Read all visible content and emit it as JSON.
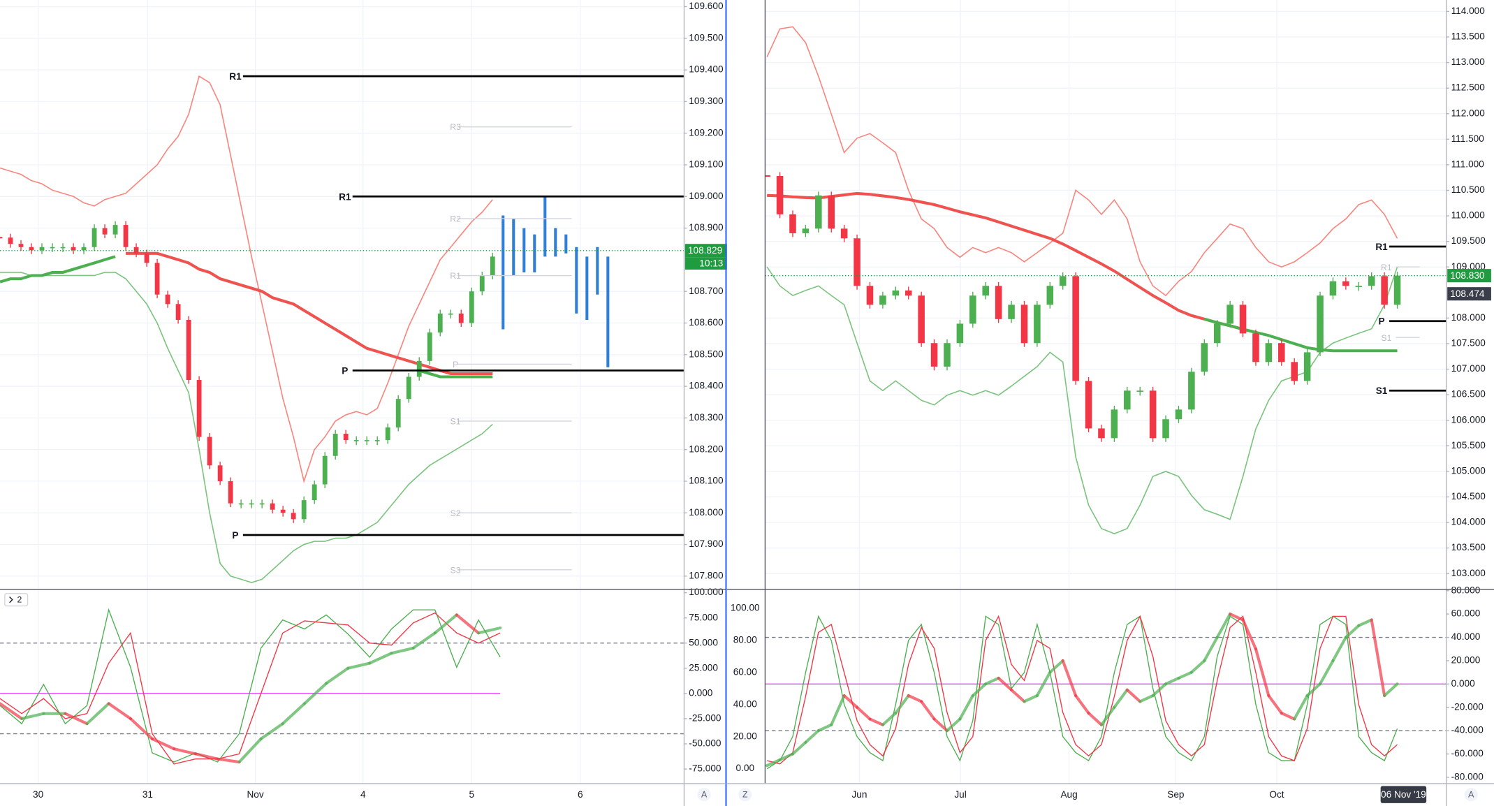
{
  "colors": {
    "up": "#4caf50",
    "down": "#f23645",
    "band_upper": "#f7877f",
    "band_lower": "#7cc47f",
    "ma_red": "#ef5350",
    "ma_green": "#4caf50",
    "projection": "#2f7fd6",
    "pivot": "#000000",
    "faint": "#d1d4dc",
    "badge": "#1e9c3f",
    "badge_dark": "#3a3e4a",
    "level": "#787b86",
    "zero": "#e040fb",
    "osc_fast": "#4caf50",
    "osc_slow": "#f23645",
    "grid": "#f0f3fa"
  },
  "left": {
    "price": {
      "ylim": [
        107.763,
        109.621
      ],
      "yticks": [
        {
          "value": 109.6,
          "label": "109.600"
        },
        {
          "value": 109.5,
          "label": "109.500"
        },
        {
          "value": 109.4,
          "label": "109.400"
        },
        {
          "value": 109.3,
          "label": "109.300"
        },
        {
          "value": 109.2,
          "label": "109.200"
        },
        {
          "value": 109.1,
          "label": "109.100"
        },
        {
          "value": 109.0,
          "label": "109.000"
        },
        {
          "value": 108.9,
          "label": "108.900"
        },
        {
          "value": 108.7,
          "label": "108.700"
        },
        {
          "value": 108.6,
          "label": "108.600"
        },
        {
          "value": 108.5,
          "label": "108.500"
        },
        {
          "value": 108.4,
          "label": "108.400"
        },
        {
          "value": 108.3,
          "label": "108.300"
        },
        {
          "value": 108.2,
          "label": "108.200"
        },
        {
          "value": 108.1,
          "label": "108.100"
        },
        {
          "value": 108.0,
          "label": "108.000"
        },
        {
          "value": 107.9,
          "label": "107.900"
        },
        {
          "value": 107.8,
          "label": "107.800"
        }
      ],
      "close": [
        108.87,
        108.85,
        108.84,
        108.83,
        108.84,
        108.84,
        108.84,
        108.83,
        108.84,
        108.9,
        108.88,
        108.91,
        108.84,
        108.82,
        108.79,
        108.69,
        108.66,
        108.61,
        108.42,
        108.24,
        108.15,
        108.1,
        108.03,
        108.03,
        108.03,
        108.03,
        108.01,
        108.0,
        107.98,
        108.04,
        108.09,
        108.18,
        108.25,
        108.23,
        108.23,
        108.23,
        108.23,
        108.27,
        108.36,
        108.43,
        108.48,
        108.57,
        108.63,
        108.63,
        108.6,
        108.7,
        108.75,
        108.81
      ],
      "ma_red": [
        null,
        null,
        null,
        null,
        null,
        null,
        null,
        null,
        null,
        null,
        null,
        null,
        108.82,
        108.82,
        108.82,
        108.82,
        108.81,
        108.8,
        108.79,
        108.77,
        108.76,
        108.74,
        108.73,
        108.72,
        108.71,
        108.7,
        108.68,
        108.67,
        108.66,
        108.64,
        108.62,
        108.6,
        108.58,
        108.56,
        108.54,
        108.52,
        108.51,
        108.5,
        108.49,
        108.48,
        108.47,
        108.46,
        108.45,
        108.44,
        108.44,
        108.44,
        108.44,
        108.44
      ],
      "ma_green": [
        108.73,
        108.74,
        108.74,
        108.75,
        108.75,
        108.76,
        108.76,
        108.77,
        108.78,
        108.79,
        108.8,
        108.81,
        null,
        null,
        null,
        null,
        null,
        null,
        null,
        null,
        null,
        null,
        null,
        null,
        null,
        null,
        null,
        null,
        null,
        null,
        null,
        null,
        null,
        null,
        null,
        null,
        null,
        null,
        null,
        null,
        108.45,
        108.44,
        108.43,
        108.43,
        108.43,
        108.43,
        108.43,
        108.43
      ],
      "band_upper": [
        109.09,
        109.08,
        109.07,
        109.05,
        109.04,
        109.02,
        109.01,
        109.0,
        108.98,
        108.97,
        108.99,
        109.0,
        109.01,
        109.04,
        109.07,
        109.1,
        109.15,
        109.19,
        109.26,
        109.38,
        109.36,
        109.29,
        109.13,
        108.97,
        108.81,
        108.66,
        108.51,
        108.36,
        108.24,
        108.1,
        108.2,
        108.24,
        108.29,
        108.31,
        108.32,
        108.31,
        108.33,
        108.41,
        108.5,
        108.59,
        108.66,
        108.73,
        108.8,
        108.84,
        108.88,
        108.92,
        108.95,
        108.99
      ],
      "band_lower": [
        108.76,
        108.76,
        108.76,
        108.75,
        108.75,
        108.75,
        108.75,
        108.75,
        108.75,
        108.75,
        108.76,
        108.76,
        108.74,
        108.7,
        108.66,
        108.6,
        108.52,
        108.45,
        108.38,
        108.2,
        108.0,
        107.84,
        107.8,
        107.79,
        107.78,
        107.79,
        107.82,
        107.85,
        107.88,
        107.9,
        107.91,
        107.91,
        107.92,
        107.92,
        107.93,
        107.95,
        107.97,
        108.01,
        108.05,
        108.09,
        108.12,
        108.15,
        108.17,
        108.19,
        108.21,
        108.23,
        108.25,
        108.28
      ],
      "proj_high": [
        108.94,
        108.93,
        108.9,
        108.88,
        109.0,
        108.9,
        108.88,
        108.84,
        108.81,
        108.84,
        108.81
      ],
      "proj_low": [
        108.58,
        108.75,
        108.76,
        108.76,
        108.81,
        108.81,
        108.82,
        108.63,
        108.61,
        108.69,
        108.46
      ],
      "pivots": [
        {
          "label": "R1",
          "value": 109.38
        },
        {
          "label": "R1",
          "value": 109.0
        },
        {
          "label": "P",
          "value": 108.45
        },
        {
          "label": "P",
          "value": 107.93
        }
      ],
      "faint_pivots": [
        {
          "label": "R3",
          "value": 109.22
        },
        {
          "label": "R2",
          "value": 108.93
        },
        {
          "label": "R1",
          "value": 108.75
        },
        {
          "label": "P",
          "value": 108.47
        },
        {
          "label": "S1",
          "value": 108.29
        },
        {
          "label": "S2",
          "value": 108.0
        },
        {
          "label": "S3",
          "value": 107.82
        }
      ],
      "last_price": {
        "value": 108.829,
        "label": "108.829"
      },
      "countdown": "10:13"
    },
    "osc": {
      "ylim": [
        -89,
        102
      ],
      "yticks": [
        {
          "value": 100,
          "label": "100.000"
        },
        {
          "value": 75,
          "label": "75.000"
        },
        {
          "value": 50,
          "label": "50.000"
        },
        {
          "value": 25,
          "label": "25.000"
        },
        {
          "value": 0,
          "label": "0.000"
        },
        {
          "value": -25,
          "label": "-25.000"
        },
        {
          "value": -50,
          "label": "-50.000"
        },
        {
          "value": -75,
          "label": "-75.000"
        }
      ],
      "levels": [
        50,
        -40
      ],
      "zero": 0,
      "fast": [
        -12,
        -30,
        9,
        -30,
        -12,
        83,
        26,
        -59,
        -68,
        -59,
        -68,
        -40,
        45,
        73,
        64,
        78,
        59,
        36,
        64,
        83,
        83,
        26,
        73,
        36
      ],
      "slow": [
        -5,
        -20,
        -5,
        -25,
        -20,
        30,
        60,
        -40,
        -70,
        -65,
        -65,
        -60,
        0,
        60,
        72,
        70,
        68,
        50,
        48,
        70,
        80,
        60,
        50,
        60
      ],
      "thick": [
        -10,
        -25,
        -20,
        -20,
        -30,
        -10,
        -25,
        -45,
        -55,
        -60,
        -65,
        -68,
        -45,
        -30,
        -10,
        10,
        25,
        30,
        40,
        45,
        60,
        78,
        60,
        65
      ]
    },
    "time_labels": [
      "30",
      "31",
      "Nov",
      "4",
      "5",
      "6"
    ],
    "pane_toggle": "2",
    "scale_button": "A"
  },
  "right": {
    "price": {
      "ylim": [
        102.721,
        114.224
      ],
      "yticks": [
        {
          "value": 114.0,
          "label": "114.000"
        },
        {
          "value": 113.5,
          "label": "113.500"
        },
        {
          "value": 113.0,
          "label": "113.000"
        },
        {
          "value": 112.5,
          "label": "112.500"
        },
        {
          "value": 112.0,
          "label": "112.000"
        },
        {
          "value": 111.5,
          "label": "111.500"
        },
        {
          "value": 111.0,
          "label": "111.000"
        },
        {
          "value": 110.5,
          "label": "110.500"
        },
        {
          "value": 110.0,
          "label": "110.000"
        },
        {
          "value": 109.5,
          "label": "109.500"
        },
        {
          "value": 109.0,
          "label": "109.000"
        },
        {
          "value": 108.0,
          "label": "108.000"
        },
        {
          "value": 107.5,
          "label": "107.500"
        },
        {
          "value": 107.0,
          "label": "107.000"
        },
        {
          "value": 106.5,
          "label": "106.500"
        },
        {
          "value": 106.0,
          "label": "106.000"
        },
        {
          "value": 105.5,
          "label": "105.500"
        },
        {
          "value": 105.0,
          "label": "105.000"
        },
        {
          "value": 104.5,
          "label": "104.500"
        },
        {
          "value": 104.0,
          "label": "104.000"
        },
        {
          "value": 103.5,
          "label": "103.500"
        },
        {
          "value": 103.0,
          "label": "103.000"
        }
      ],
      "close": [
        110.78,
        110.03,
        109.66,
        109.75,
        110.4,
        109.75,
        109.56,
        108.63,
        108.26,
        108.44,
        108.54,
        108.44,
        107.51,
        107.05,
        107.51,
        107.89,
        108.44,
        108.63,
        107.98,
        108.26,
        107.51,
        108.26,
        108.63,
        108.82,
        106.77,
        105.84,
        105.65,
        106.21,
        106.58,
        106.58,
        105.65,
        106.02,
        106.21,
        106.95,
        107.51,
        107.89,
        108.26,
        107.7,
        107.14,
        107.51,
        107.14,
        106.77,
        107.33,
        108.44,
        108.72,
        108.63,
        108.63,
        108.82,
        108.26,
        108.83
      ],
      "ma_red": [
        110.4,
        110.39,
        110.37,
        110.36,
        110.35,
        110.38,
        110.41,
        110.44,
        110.42,
        110.39,
        110.36,
        110.32,
        110.27,
        110.22,
        110.15,
        110.08,
        110.02,
        109.96,
        109.88,
        109.8,
        109.72,
        109.64,
        109.56,
        109.45,
        109.32,
        109.19,
        109.06,
        108.92,
        108.76,
        108.6,
        108.44,
        108.3,
        108.15,
        108.05,
        107.98,
        107.91,
        107.85,
        107.78,
        107.72,
        null,
        null,
        null,
        null,
        null,
        null,
        null,
        null,
        null,
        null,
        null
      ],
      "ma_green": [
        null,
        null,
        null,
        null,
        null,
        null,
        null,
        null,
        null,
        null,
        null,
        null,
        null,
        null,
        null,
        null,
        null,
        null,
        null,
        null,
        null,
        null,
        null,
        null,
        null,
        null,
        null,
        null,
        null,
        null,
        null,
        null,
        null,
        null,
        107.98,
        107.91,
        107.85,
        107.78,
        107.72,
        107.66,
        107.58,
        107.5,
        107.42,
        107.38,
        107.36,
        107.36,
        107.36,
        107.36,
        107.36,
        107.36
      ],
      "band_upper": [
        113.11,
        113.66,
        113.7,
        113.39,
        112.73,
        111.99,
        111.24,
        111.52,
        111.61,
        111.43,
        111.24,
        110.5,
        109.94,
        109.75,
        109.38,
        109.19,
        109.38,
        109.28,
        109.38,
        109.28,
        109.1,
        109.28,
        109.47,
        109.66,
        110.5,
        110.31,
        110.03,
        110.31,
        109.94,
        109.1,
        108.63,
        108.44,
        108.72,
        108.91,
        109.28,
        109.56,
        109.84,
        109.75,
        109.38,
        109.1,
        109.0,
        109.1,
        109.28,
        109.47,
        109.75,
        109.94,
        110.22,
        110.31,
        110.03,
        109.56
      ],
      "band_lower": [
        109.0,
        108.63,
        108.44,
        108.54,
        108.63,
        108.44,
        108.26,
        107.51,
        106.77,
        106.58,
        106.77,
        106.58,
        106.39,
        106.3,
        106.49,
        106.58,
        106.49,
        106.58,
        106.49,
        106.67,
        106.86,
        107.05,
        107.33,
        107.14,
        105.28,
        104.34,
        103.88,
        103.78,
        103.88,
        104.34,
        104.9,
        105.0,
        104.9,
        104.53,
        104.25,
        104.16,
        104.06,
        104.9,
        105.83,
        106.39,
        106.77,
        106.86,
        106.95,
        107.33,
        107.51,
        107.61,
        107.7,
        107.79,
        108.26,
        109.0
      ],
      "pivots": [
        {
          "label": "R1",
          "value": 109.4
        },
        {
          "label": "P",
          "value": 107.94
        },
        {
          "label": "S1",
          "value": 106.58
        }
      ],
      "faint_pivots": [
        {
          "label": "R1",
          "value": 109.0
        },
        {
          "label": "S1",
          "value": 107.62
        }
      ],
      "last_price": {
        "value": 108.83,
        "label": "108.830"
      },
      "second_price": {
        "value": 108.474,
        "label": "108.474"
      }
    },
    "osc": {
      "ylim": [
        -9,
        111
      ],
      "yticks": [
        {
          "value": 100,
          "label": "100.00"
        },
        {
          "value": 80,
          "label": "80.00"
        },
        {
          "value": 60,
          "label": "60.00"
        },
        {
          "value": 40,
          "label": "40.00"
        },
        {
          "value": 20,
          "label": "20.00"
        },
        {
          "value": 0,
          "label": "0.00"
        }
      ],
      "y2lim": [
        -85,
        80
      ],
      "y2ticks": [
        {
          "value": 80,
          "label": "80.000"
        },
        {
          "value": 60,
          "label": "60.000"
        },
        {
          "value": 40,
          "label": "40.000"
        },
        {
          "value": 20,
          "label": "20.000"
        },
        {
          "value": 0,
          "label": "0.000"
        },
        {
          "value": -20,
          "label": "-20.000"
        },
        {
          "value": -40,
          "label": "-40.000"
        },
        {
          "value": -60,
          "label": "-60.000"
        },
        {
          "value": -80,
          "label": "-80.000"
        }
      ],
      "levels": [
        40,
        -40
      ],
      "zero": 0,
      "fast": [
        0,
        5,
        20,
        60,
        95,
        80,
        40,
        20,
        10,
        5,
        40,
        80,
        90,
        60,
        20,
        5,
        30,
        95,
        90,
        50,
        60,
        90,
        60,
        20,
        10,
        5,
        20,
        60,
        90,
        95,
        50,
        20,
        10,
        5,
        20,
        70,
        95,
        90,
        40,
        10,
        5,
        5,
        40,
        90,
        95,
        90,
        20,
        10,
        5,
        25
      ],
      "slow": [
        5,
        3,
        10,
        45,
        85,
        90,
        60,
        30,
        15,
        8,
        25,
        65,
        88,
        75,
        35,
        10,
        20,
        80,
        95,
        65,
        55,
        80,
        75,
        35,
        15,
        8,
        15,
        45,
        80,
        95,
        70,
        30,
        15,
        8,
        15,
        55,
        88,
        95,
        60,
        20,
        8,
        5,
        25,
        75,
        95,
        95,
        40,
        15,
        8,
        15
      ],
      "thick": [
        -70,
        -65,
        -60,
        -50,
        -40,
        -35,
        -10,
        -20,
        -30,
        -35,
        -25,
        -10,
        -15,
        -30,
        -40,
        -30,
        -10,
        0,
        5,
        -5,
        -15,
        -10,
        10,
        20,
        -10,
        -25,
        -35,
        -20,
        -5,
        -15,
        -10,
        0,
        5,
        10,
        20,
        40,
        60,
        55,
        30,
        -10,
        -25,
        -30,
        -10,
        0,
        20,
        40,
        50,
        55,
        -10,
        0
      ]
    },
    "time_labels": [
      "Jun",
      "Jul",
      "Aug",
      "Sep",
      "Oct"
    ],
    "time_cursor": "06 Nov '19",
    "zoom_button": "Z",
    "scale_button": "A"
  }
}
